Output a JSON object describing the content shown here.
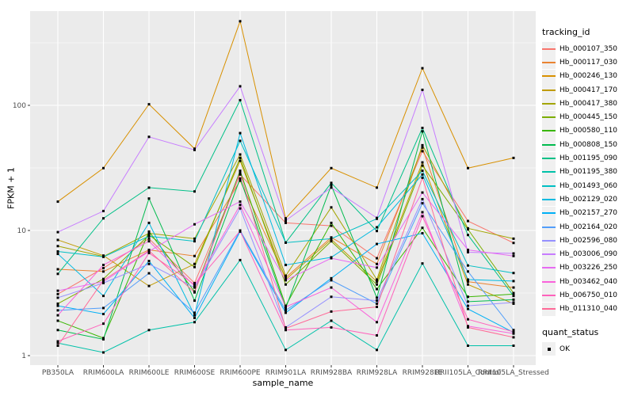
{
  "chart_data": {
    "type": "line",
    "title": "",
    "xlabel": "sample_name",
    "ylabel": "FPKM + 1",
    "y_scale": "log10",
    "y_ticks": [
      1,
      10,
      100
    ],
    "ylim": [
      1,
      560
    ],
    "grid": true,
    "legend_position": "right",
    "marker": "black-square",
    "categories": [
      "PB350LA",
      "RRIM600LA",
      "RRIM600LE",
      "RRIM600SE",
      "RRIM600PE",
      "RRIM901LA",
      "RRIM928BA",
      "RRIM928LA",
      "RRIM928LE",
      "RRII105LA_Control",
      "RRII105LA_Stressed"
    ],
    "series": [
      {
        "name": "Hb_000107_350",
        "color": "#F8766D",
        "values": [
          3.1,
          5.0,
          8.6,
          3.8,
          28,
          11.5,
          10.9,
          6.0,
          43,
          11.9,
          7.95
        ]
      },
      {
        "name": "Hb_000117_030",
        "color": "#EA8331",
        "values": [
          4.9,
          4.7,
          7.0,
          6.25,
          25,
          4.2,
          8.8,
          5.4,
          46,
          3.9,
          3.5
        ]
      },
      {
        "name": "Hb_000246_130",
        "color": "#D89000",
        "values": [
          17,
          31.5,
          102,
          45,
          470,
          12.5,
          31.5,
          22,
          198,
          31.5,
          38
        ]
      },
      {
        "name": "Hb_000417_170",
        "color": "#C09B00",
        "values": [
          8.4,
          6.3,
          3.6,
          5.4,
          36,
          4.05,
          8.5,
          3.9,
          35,
          3.7,
          2.6
        ]
      },
      {
        "name": "Hb_000417_380",
        "color": "#A3A500",
        "values": [
          7.5,
          6.2,
          9.5,
          8.6,
          40.5,
          4.35,
          15.3,
          4.05,
          48,
          10.4,
          8.6
        ]
      },
      {
        "name": "Hb_000445_150",
        "color": "#7CAE00",
        "values": [
          2.6,
          4.1,
          9.2,
          5.1,
          38,
          3.7,
          8.2,
          3.7,
          33,
          10.2,
          3.16
        ]
      },
      {
        "name": "Hb_000580_110",
        "color": "#39B600",
        "values": [
          1.9,
          1.38,
          9.8,
          3.25,
          30,
          2.5,
          11.5,
          3.4,
          10.5,
          2.95,
          3.1
        ]
      },
      {
        "name": "Hb_000808_150",
        "color": "#00BB4E",
        "values": [
          1.6,
          1.35,
          18,
          2.75,
          26,
          2.4,
          23,
          2.9,
          62,
          2.7,
          2.8
        ]
      },
      {
        "name": "Hb_001195_090",
        "color": "#00C087",
        "values": [
          4.5,
          12.5,
          22,
          20.5,
          110,
          8.0,
          24,
          9.9,
          66,
          9.2,
          3.0
        ]
      },
      {
        "name": "Hb_001195_380",
        "color": "#00C1A9",
        "values": [
          1.26,
          1.06,
          1.6,
          1.85,
          5.8,
          1.11,
          1.9,
          1.11,
          5.45,
          1.2,
          1.2
        ]
      },
      {
        "name": "Hb_001493_060",
        "color": "#00BFC4",
        "values": [
          6.8,
          6.15,
          9.0,
          8.2,
          52,
          8.0,
          8.6,
          12.4,
          30,
          5.25,
          4.57
        ]
      },
      {
        "name": "Hb_002129_020",
        "color": "#00BAE0",
        "values": [
          6.5,
          3.0,
          11.5,
          2.1,
          60,
          5.3,
          6.1,
          10.6,
          28,
          4.05,
          3.94
        ]
      },
      {
        "name": "Hb_002157_270",
        "color": "#00B0F6",
        "values": [
          2.5,
          2.15,
          5.7,
          2.0,
          9.8,
          2.2,
          4.15,
          7.8,
          9.5,
          2.36,
          1.53
        ]
      },
      {
        "name": "Hb_002164_020",
        "color": "#529EFA",
        "values": [
          2.3,
          2.4,
          4.55,
          2.2,
          10,
          2.3,
          4.0,
          2.6,
          16.5,
          4.7,
          1.6
        ]
      },
      {
        "name": "Hb_002596_080",
        "color": "#9590FF",
        "values": [
          2.9,
          3.8,
          5.4,
          3.5,
          15,
          1.68,
          2.95,
          2.75,
          17.8,
          2.5,
          2.66
        ]
      },
      {
        "name": "Hb_003006_090",
        "color": "#C77CFF",
        "values": [
          9.7,
          14.3,
          56,
          44,
          142,
          12,
          22,
          12.6,
          133,
          6.7,
          6.55
        ]
      },
      {
        "name": "Hb_003226_250",
        "color": "#E76BF3",
        "values": [
          3.3,
          3.9,
          6.8,
          11.2,
          17,
          4.0,
          6.0,
          5.05,
          20.1,
          7.0,
          6.25
        ]
      },
      {
        "name": "Hb_003462_040",
        "color": "#FA62DB",
        "values": [
          2.1,
          5.3,
          8.2,
          3.6,
          16,
          2.45,
          3.5,
          1.85,
          14,
          1.72,
          1.5
        ]
      },
      {
        "name": "Hb_006750_010",
        "color": "#FF62BC",
        "values": [
          1.3,
          1.8,
          6.6,
          3.7,
          9.9,
          1.6,
          1.68,
          1.45,
          13,
          1.95,
          1.55
        ]
      },
      {
        "name": "Hb_011310_040",
        "color": "#FF6A98",
        "values": [
          1.2,
          4.0,
          6.9,
          3.2,
          29,
          1.65,
          2.25,
          2.45,
          26.4,
          1.68,
          1.4
        ]
      }
    ],
    "legend": {
      "tracking_title": "tracking_id",
      "quant_title": "quant_status",
      "quant_items": [
        {
          "label": "OK",
          "marker": "black-square"
        }
      ]
    },
    "style": {
      "panel_bg": "#EBEBEB",
      "grid_color": "#FFFFFF",
      "marker_color": "#000000",
      "tick_text_color": "#4d4d4d",
      "legend_key_bg": "#F0F0F0"
    }
  }
}
